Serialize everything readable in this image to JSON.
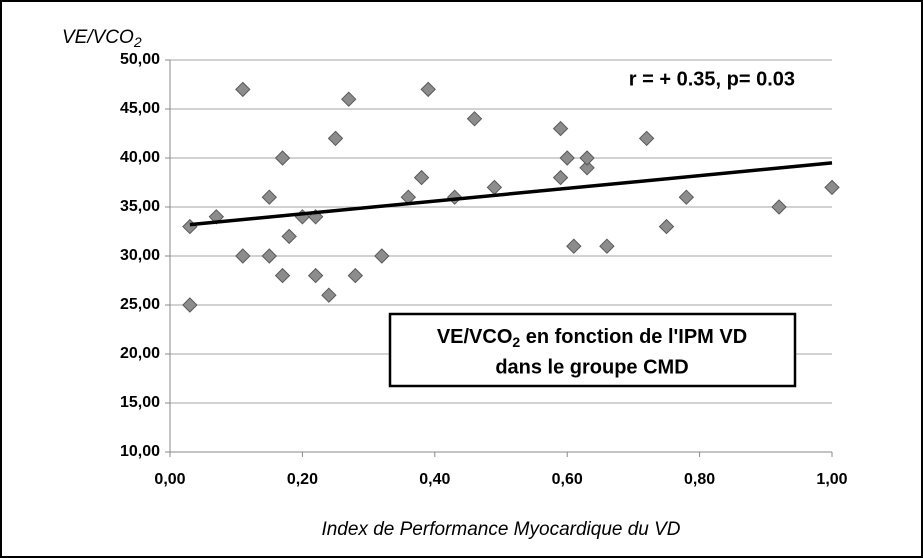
{
  "chart_data": {
    "type": "scatter",
    "y_label": {
      "text": "VE/VCO",
      "sub": "2"
    },
    "x_label": "Index de Performance Myocardique du VD",
    "annotation": "r = + 0.35,  p= 0.03",
    "legend_box": {
      "line1": [
        "VE/VCO",
        "2",
        " en fonction de l'IPM VD"
      ],
      "line2": "dans le groupe CMD"
    },
    "color": "#8c8c8c",
    "grid": true,
    "xlim": [
      0,
      1
    ],
    "ylim": [
      10,
      50
    ],
    "xticks": [
      {
        "value": 0,
        "label": "0,00"
      },
      {
        "value": 0.2,
        "label": "0,20"
      },
      {
        "value": 0.4,
        "label": "0,40"
      },
      {
        "value": 0.6,
        "label": "0,60"
      },
      {
        "value": 0.8,
        "label": "0,80"
      },
      {
        "value": 1,
        "label": "1,00"
      }
    ],
    "yticks": [
      {
        "value": 10,
        "label": "10,00"
      },
      {
        "value": 15,
        "label": "15,00"
      },
      {
        "value": 20,
        "label": "20,00"
      },
      {
        "value": 25,
        "label": "25,00"
      },
      {
        "value": 30,
        "label": "30,00"
      },
      {
        "value": 35,
        "label": "35,00"
      },
      {
        "value": 40,
        "label": "40,00"
      },
      {
        "value": 45,
        "label": "45,00"
      },
      {
        "value": 50,
        "label": "50,00"
      }
    ],
    "x": [
      0.03,
      0.03,
      0.07,
      0.11,
      0.11,
      0.15,
      0.15,
      0.17,
      0.17,
      0.18,
      0.2,
      0.22,
      0.22,
      0.24,
      0.25,
      0.27,
      0.28,
      0.32,
      0.36,
      0.38,
      0.39,
      0.43,
      0.46,
      0.49,
      0.59,
      0.59,
      0.6,
      0.61,
      0.63,
      0.63,
      0.66,
      0.72,
      0.75,
      0.78,
      0.92,
      1.0
    ],
    "values": [
      33,
      25,
      34,
      47,
      30,
      36,
      30,
      40,
      28,
      32,
      34,
      34,
      28,
      26,
      42,
      46,
      28,
      30,
      36,
      38,
      47,
      36,
      44,
      37,
      43,
      38,
      40,
      31,
      39,
      40,
      31,
      42,
      33,
      36,
      35,
      37
    ],
    "trendline": {
      "x": [
        0.03,
        1.0
      ],
      "values": [
        33.2,
        39.5
      ],
      "color": "#000000"
    }
  }
}
